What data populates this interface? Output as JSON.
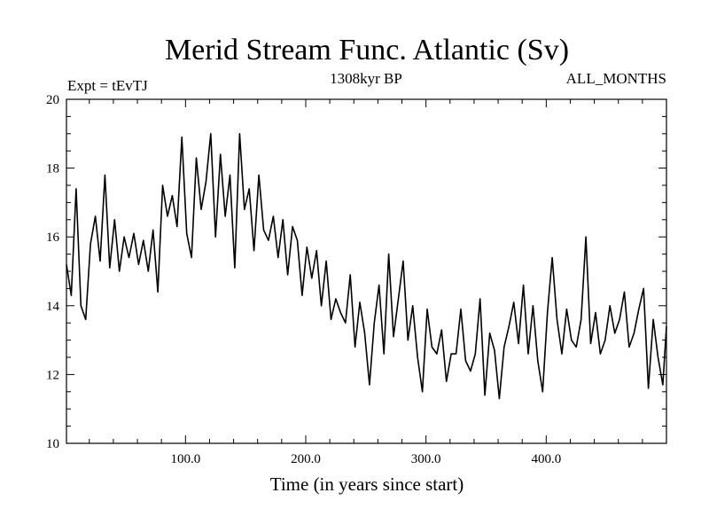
{
  "chart_data": {
    "type": "line",
    "title": "Merid Stream Func. Atlantic (Sv)",
    "subtitle_left": "Expt = tEvTJ",
    "subtitle_center": "1308kyr BP",
    "subtitle_right": "ALL_MONTHS",
    "xlabel": "Time (in years since start)",
    "ylabel": "",
    "xlim": [
      1,
      500
    ],
    "ylim": [
      10,
      20
    ],
    "xticks": [
      100,
      200,
      300,
      400
    ],
    "xtick_labels": [
      "100.0",
      "200.0",
      "300.0",
      "400.0"
    ],
    "yticks": [
      10,
      12,
      14,
      16,
      18,
      20
    ],
    "ytick_labels": [
      "10",
      "12",
      "14",
      "16",
      "18",
      "20"
    ],
    "series": [
      {
        "name": "Merid Stream Func. Atlantic",
        "color": "#000000",
        "x": [
          1,
          5,
          9,
          13,
          17,
          21,
          25,
          29,
          33,
          37,
          41,
          45,
          49,
          53,
          57,
          61,
          65,
          69,
          73,
          77,
          81,
          85,
          89,
          93,
          97,
          101,
          105,
          109,
          113,
          117,
          121,
          125,
          129,
          133,
          137,
          141,
          145,
          149,
          153,
          157,
          161,
          165,
          169,
          173,
          177,
          181,
          185,
          189,
          193,
          197,
          201,
          205,
          209,
          213,
          217,
          221,
          225,
          229,
          233,
          237,
          241,
          245,
          249,
          253,
          257,
          261,
          265,
          269,
          273,
          277,
          281,
          285,
          289,
          293,
          297,
          301,
          305,
          309,
          313,
          317,
          321,
          325,
          329,
          333,
          337,
          341,
          345,
          349,
          353,
          357,
          361,
          365,
          369,
          373,
          377,
          381,
          385,
          389,
          393,
          397,
          401,
          405,
          409,
          413,
          417,
          421,
          425,
          429,
          433,
          437,
          441,
          445,
          449,
          453,
          457,
          461,
          465,
          469,
          473,
          477,
          481,
          485,
          489,
          493,
          497,
          500
        ],
        "values": [
          15.2,
          14.3,
          17.4,
          14.0,
          13.6,
          15.8,
          16.6,
          15.3,
          17.8,
          15.1,
          16.5,
          15.0,
          16.0,
          15.4,
          16.1,
          15.2,
          15.9,
          15.0,
          16.2,
          14.4,
          17.5,
          16.6,
          17.2,
          16.3,
          18.9,
          16.1,
          15.4,
          18.3,
          16.8,
          17.6,
          19.0,
          16.0,
          18.4,
          16.6,
          17.8,
          15.1,
          19.0,
          16.8,
          17.4,
          15.6,
          17.8,
          16.2,
          15.9,
          16.6,
          15.4,
          16.5,
          14.9,
          16.3,
          15.9,
          14.3,
          15.7,
          14.8,
          15.6,
          14.0,
          15.3,
          13.6,
          14.2,
          13.8,
          13.5,
          14.9,
          12.8,
          14.1,
          13.2,
          11.7,
          13.5,
          14.6,
          12.6,
          15.5,
          13.1,
          14.2,
          15.3,
          13.0,
          14.0,
          12.5,
          11.5,
          13.9,
          12.8,
          12.6,
          13.3,
          11.8,
          12.6,
          12.6,
          13.9,
          12.4,
          12.1,
          12.6,
          14.2,
          11.4,
          13.2,
          12.7,
          11.3,
          12.8,
          13.4,
          14.1,
          12.9,
          14.6,
          12.6,
          14.0,
          12.4,
          11.5,
          13.8,
          15.4,
          13.6,
          12.6,
          13.9,
          13.0,
          12.8,
          13.6,
          16.0,
          12.9,
          13.8,
          12.6,
          13.0,
          14.0,
          13.2,
          13.6,
          14.4,
          12.8,
          13.2,
          13.9,
          14.5,
          11.6,
          13.6,
          12.5,
          11.7,
          13.4
        ]
      }
    ]
  }
}
